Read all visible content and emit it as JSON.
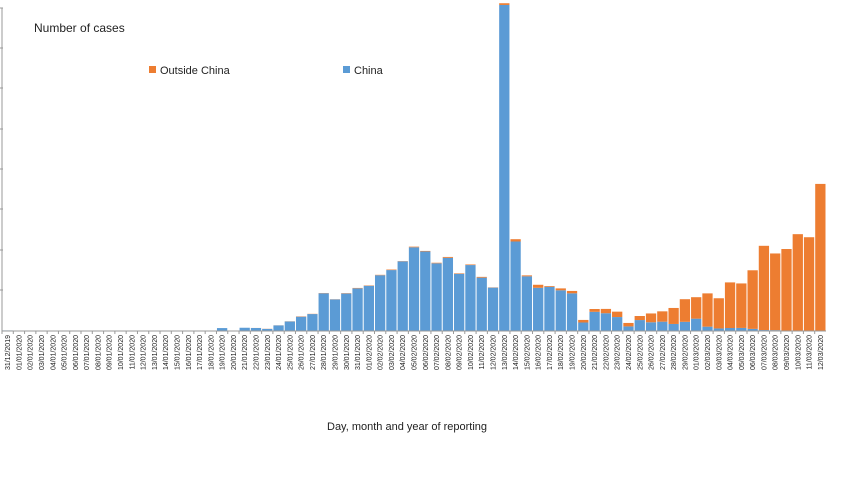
{
  "chart_data": {
    "type": "bar",
    "stacked": true,
    "ylabel": "Number of cases",
    "xlabel": "Day, month and year of reporting",
    "grid": false,
    "legend_position": "top",
    "categories": [
      "31/12/2019",
      "01/01/2020",
      "02/01/2020",
      "03/01/2020",
      "04/01/2020",
      "05/01/2020",
      "06/01/2020",
      "07/01/2020",
      "08/01/2020",
      "09/01/2020",
      "10/01/2020",
      "11/01/2020",
      "12/01/2020",
      "13/01/2020",
      "14/01/2020",
      "15/01/2020",
      "16/01/2020",
      "17/01/2020",
      "18/01/2020",
      "19/01/2020",
      "20/01/2020",
      "21/01/2020",
      "22/01/2020",
      "23/01/2020",
      "24/01/2020",
      "25/01/2020",
      "26/01/2020",
      "27/01/2020",
      "28/01/2020",
      "29/01/2020",
      "30/01/2020",
      "31/01/2020",
      "01/02/2020",
      "02/02/2020",
      "03/02/2020",
      "04/02/2020",
      "05/02/2020",
      "06/02/2020",
      "07/02/2020",
      "08/02/2020",
      "09/02/2020",
      "10/02/2020",
      "11/02/2020",
      "12/02/2020",
      "13/02/2020",
      "14/02/2020",
      "15/02/2020",
      "16/02/2020",
      "17/02/2020",
      "18/02/2020",
      "19/02/2020",
      "20/02/2020",
      "21/02/2020",
      "22/02/2020",
      "23/02/2020",
      "24/02/2020",
      "25/02/2020",
      "26/02/2020",
      "27/02/2020",
      "28/02/2020",
      "29/02/2020",
      "01/03/2020",
      "02/03/2020",
      "03/03/2020",
      "04/03/2020",
      "05/03/2020",
      "06/03/2020",
      "07/03/2020",
      "08/03/2020",
      "09/03/2020",
      "10/03/2020",
      "11/03/2020",
      "12/03/2020"
    ],
    "ylim": [
      0,
      15000
    ],
    "series": [
      {
        "name": "China",
        "color": "#5b9bd5",
        "values": [
          27,
          0,
          0,
          17,
          0,
          15,
          0,
          0,
          0,
          0,
          0,
          0,
          0,
          0,
          0,
          0,
          0,
          4,
          17,
          136,
          20,
          151,
          140,
          97,
          259,
          441,
          665,
          787,
          1753,
          1466,
          1740,
          1980,
          2101,
          2590,
          2829,
          3235,
          3887,
          3694,
          3143,
          3399,
          2656,
          3062,
          2478,
          2015,
          15141,
          4156,
          2538,
          2007,
          2052,
          1890,
          1750,
          394,
          891,
          826,
          648,
          214,
          508,
          406,
          433,
          327,
          427,
          573,
          202,
          119,
          139,
          143,
          99,
          44,
          40,
          19,
          24,
          15,
          11
        ]
      },
      {
        "name": "Outside China",
        "color": "#ed7d31",
        "values": [
          0,
          0,
          0,
          0,
          0,
          0,
          0,
          0,
          0,
          0,
          0,
          0,
          0,
          1,
          0,
          0,
          0,
          0,
          1,
          0,
          0,
          0,
          2,
          6,
          4,
          7,
          15,
          10,
          12,
          8,
          16,
          20,
          17,
          19,
          25,
          12,
          30,
          25,
          27,
          40,
          24,
          28,
          36,
          11,
          80,
          107,
          45,
          140,
          36,
          89,
          110,
          120,
          130,
          200,
          250,
          160,
          188,
          409,
          480,
          743,
          1050,
          997,
          1545,
          1402,
          2118,
          2066,
          2721,
          3912,
          3561,
          3788,
          4473,
          4340,
          6820
        ]
      }
    ]
  }
}
